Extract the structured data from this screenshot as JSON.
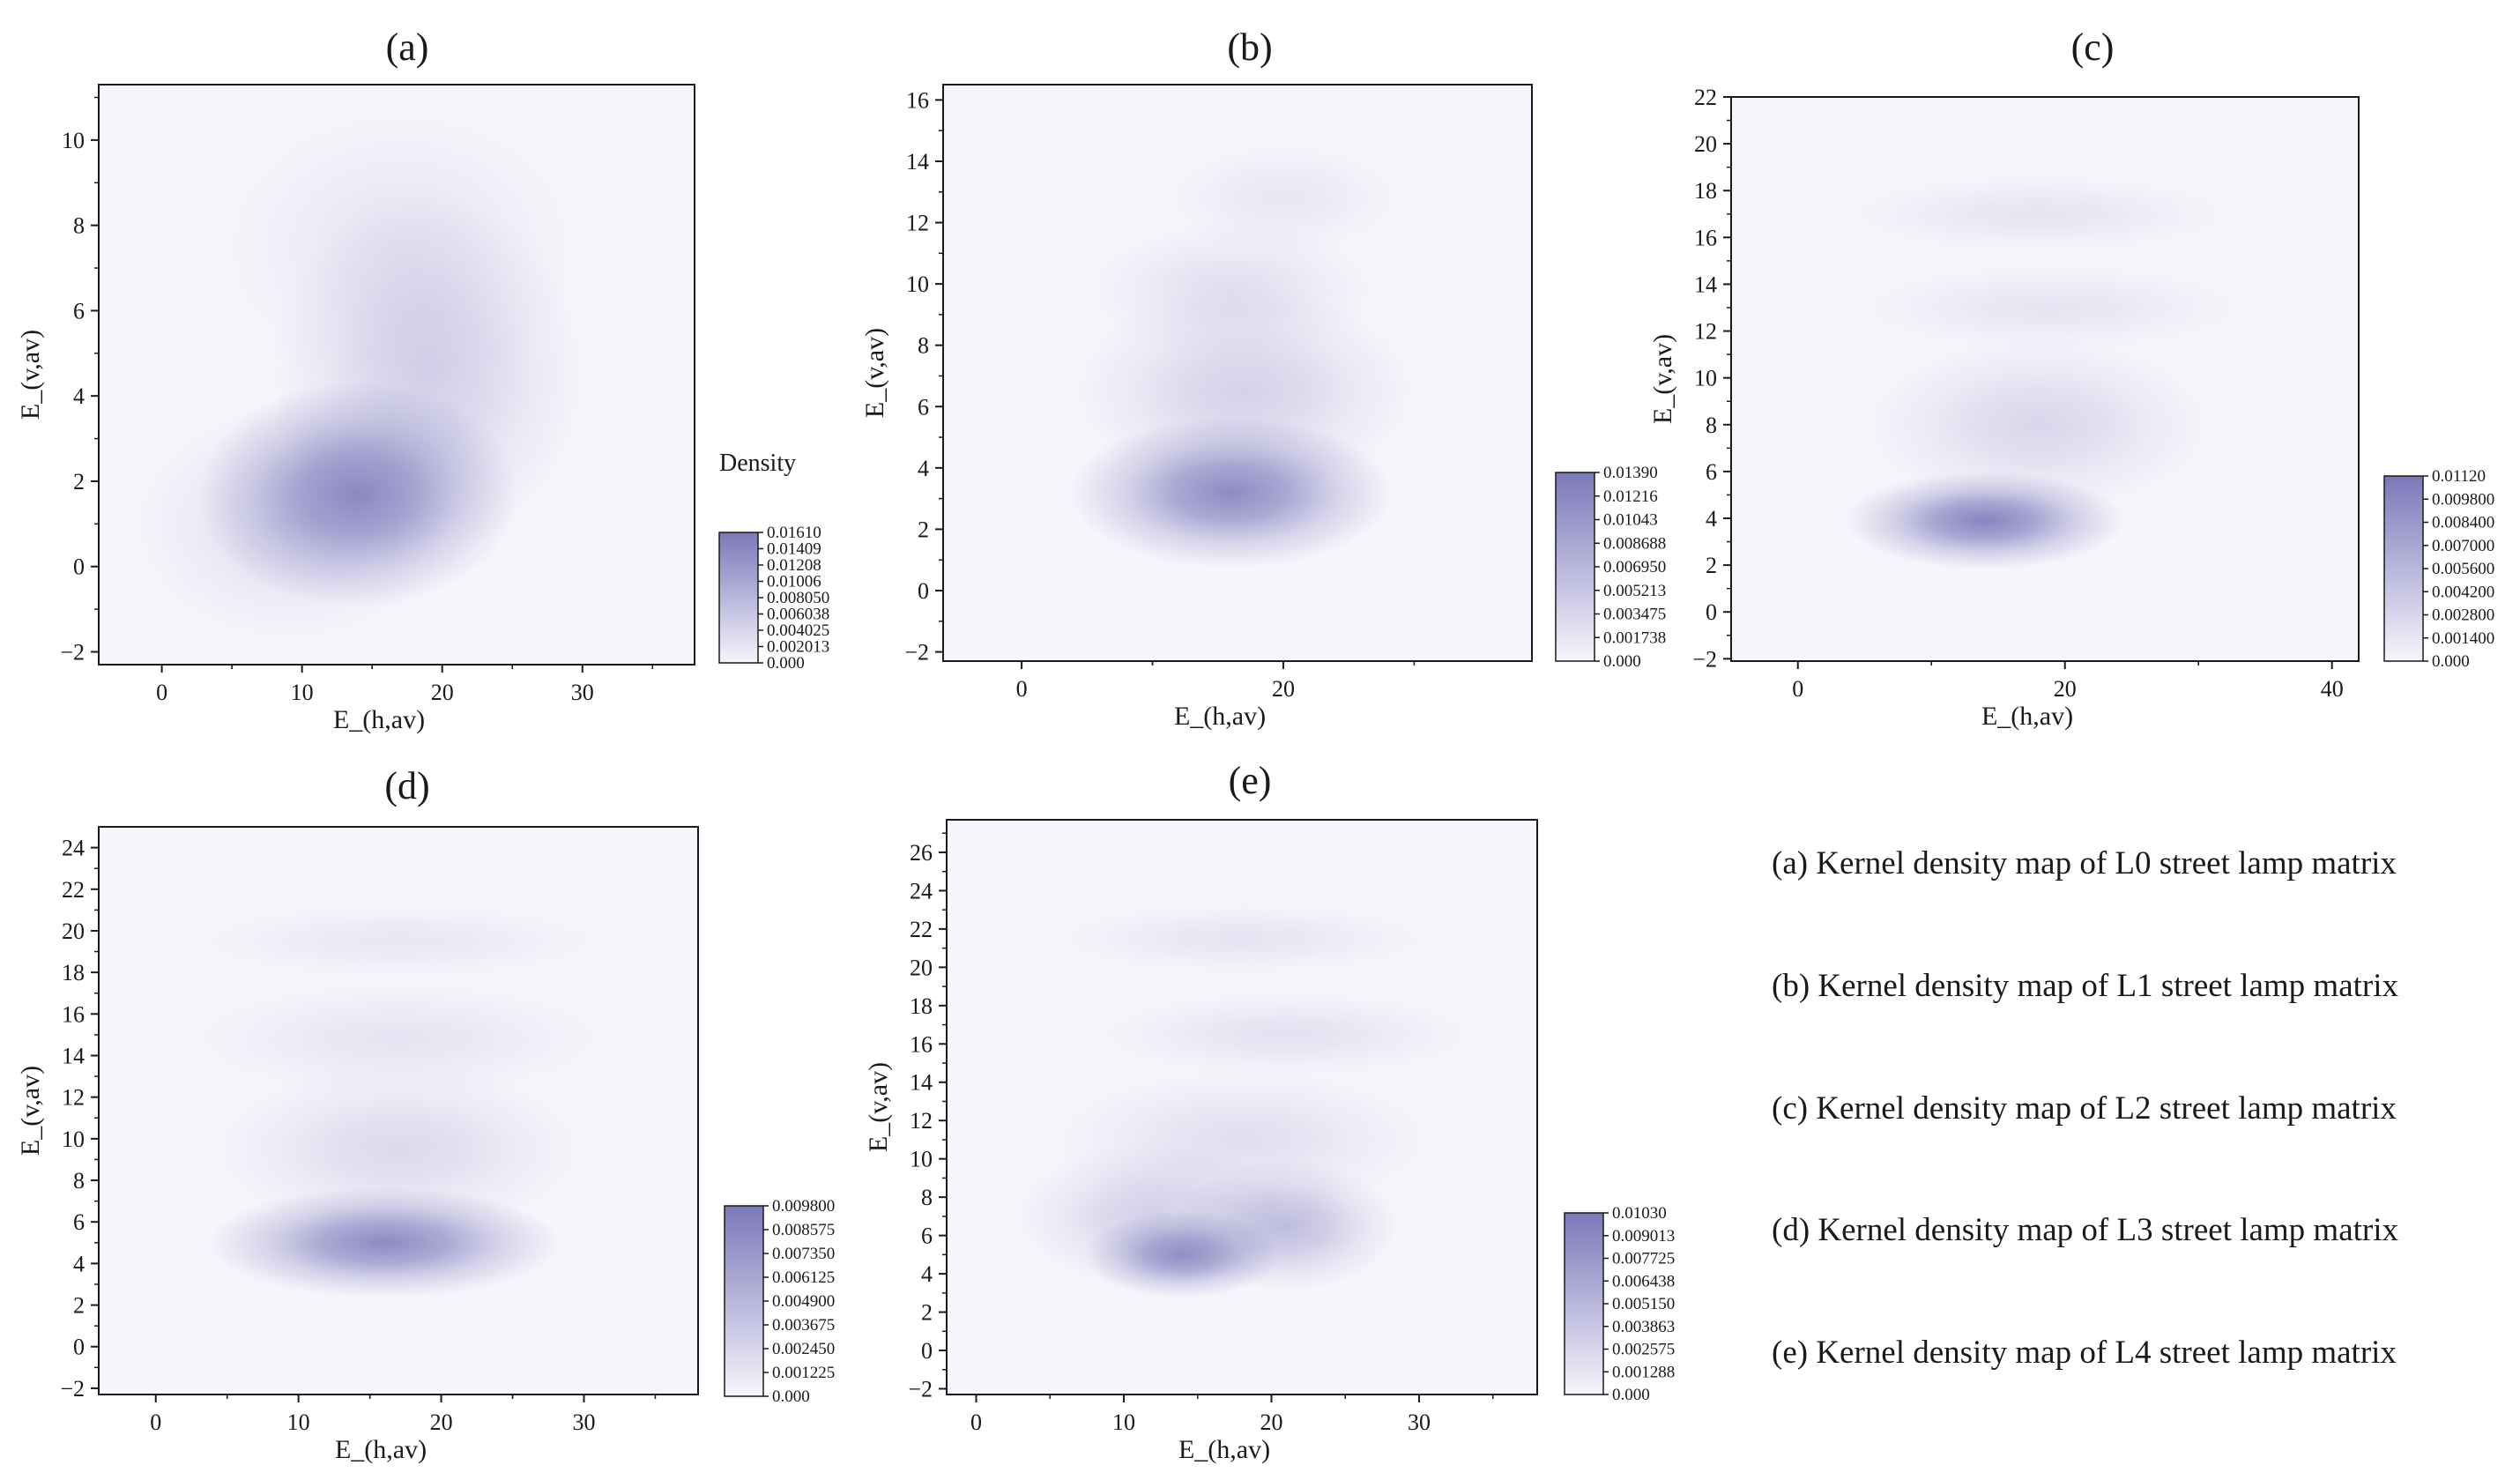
{
  "colors": {
    "low": "#f6f5fb",
    "high": "#7b78ba",
    "axis": "#1a1a1a"
  },
  "chart_data": [
    {
      "type": "heatmap",
      "title": "(a)",
      "xlabel": "E_(h,av)",
      "ylabel": "E_(v,av)",
      "xlim": [
        -4.5,
        38
      ],
      "ylim": [
        -2.3,
        11.3
      ],
      "xticks": [
        "0",
        "10",
        "20",
        "30"
      ],
      "xtick_values": [
        0,
        10,
        20,
        30
      ],
      "yticks": [
        "−2",
        "0",
        "2",
        "4",
        "6",
        "8",
        "10"
      ],
      "ytick_values": [
        -2,
        0,
        2,
        4,
        6,
        8,
        10
      ],
      "colorbar": {
        "title": "Density",
        "labels": [
          "0.000",
          "0.002013",
          "0.004025",
          "0.006038",
          "0.008050",
          "0.01006",
          "0.01208",
          "0.01409",
          "0.01610"
        ]
      },
      "blobs": [
        {
          "cx": 14,
          "cy": 1.7,
          "sx": 6,
          "sy": 1.4,
          "a": 0.85
        },
        {
          "cx": 19,
          "cy": 4.5,
          "sx": 6,
          "sy": 2.2,
          "a": 0.3
        },
        {
          "cx": 17,
          "cy": 7.5,
          "sx": 7,
          "sy": 1.8,
          "a": 0.14
        },
        {
          "cx": 9,
          "cy": 1.0,
          "sx": 6,
          "sy": 1.5,
          "a": 0.2
        }
      ]
    },
    {
      "type": "heatmap",
      "title": "(b)",
      "xlabel": "E_(h,av)",
      "ylabel": "E_(v,av)",
      "xlim": [
        -6,
        39
      ],
      "ylim": [
        -2.3,
        16.5
      ],
      "xticks": [
        "0",
        "20"
      ],
      "xtick_values": [
        0,
        20
      ],
      "yticks": [
        "−2",
        "0",
        "2",
        "4",
        "6",
        "8",
        "10",
        "12",
        "14",
        "16"
      ],
      "ytick_values": [
        -2,
        0,
        2,
        4,
        6,
        8,
        10,
        12,
        14,
        16
      ],
      "colorbar": {
        "title": "",
        "labels": [
          "0.000",
          "0.001738",
          "0.003475",
          "0.005213",
          "0.006950",
          "0.008688",
          "0.01043",
          "0.01216",
          "0.01390"
        ]
      },
      "blobs": [
        {
          "cx": 16,
          "cy": 3.2,
          "sx": 6.5,
          "sy": 1.3,
          "a": 0.85
        },
        {
          "cx": 17,
          "cy": 6.5,
          "sx": 7,
          "sy": 1.8,
          "a": 0.28
        },
        {
          "cx": 16,
          "cy": 9.8,
          "sx": 6,
          "sy": 1.2,
          "a": 0.18
        },
        {
          "cx": 20,
          "cy": 12.8,
          "sx": 5,
          "sy": 1.0,
          "a": 0.12
        }
      ]
    },
    {
      "type": "heatmap",
      "title": "(c)",
      "xlabel": "E_(h,av)",
      "ylabel": "E_(v,av)",
      "xlim": [
        -5,
        42
      ],
      "ylim": [
        -2.1,
        22
      ],
      "xticks": [
        "0",
        "20",
        "40"
      ],
      "xtick_values": [
        0,
        20,
        40
      ],
      "yticks": [
        "−2",
        "0",
        "2",
        "4",
        "6",
        "8",
        "10",
        "12",
        "14",
        "16",
        "18",
        "20",
        "22"
      ],
      "ytick_values": [
        -2,
        0,
        2,
        4,
        6,
        8,
        10,
        12,
        14,
        16,
        18,
        20,
        22
      ],
      "colorbar": {
        "title": "",
        "labels": [
          "0.000",
          "0.001400",
          "0.002800",
          "0.004200",
          "0.005600",
          "0.007000",
          "0.008400",
          "0.009800",
          "0.01120"
        ]
      },
      "blobs": [
        {
          "cx": 14,
          "cy": 3.9,
          "sx": 5.5,
          "sy": 1.1,
          "a": 0.9
        },
        {
          "cx": 18,
          "cy": 8.0,
          "sx": 7,
          "sy": 2.0,
          "a": 0.24
        },
        {
          "cx": 19,
          "cy": 13.0,
          "sx": 8,
          "sy": 1.0,
          "a": 0.14
        },
        {
          "cx": 18,
          "cy": 17.0,
          "sx": 8,
          "sy": 0.9,
          "a": 0.14
        }
      ]
    },
    {
      "type": "heatmap",
      "title": "(d)",
      "xlabel": "E_(h,av)",
      "ylabel": "E_(v,av)",
      "xlim": [
        -4,
        38
      ],
      "ylim": [
        -2.3,
        25
      ],
      "xticks": [
        "0",
        "10",
        "20",
        "30"
      ],
      "xtick_values": [
        0,
        10,
        20,
        30
      ],
      "yticks": [
        "−2",
        "0",
        "2",
        "4",
        "6",
        "8",
        "10",
        "12",
        "14",
        "16",
        "18",
        "20",
        "22",
        "24"
      ],
      "ytick_values": [
        -2,
        0,
        2,
        4,
        6,
        8,
        10,
        12,
        14,
        16,
        18,
        20,
        22,
        24
      ],
      "colorbar": {
        "title": "",
        "labels": [
          "0.000",
          "0.001225",
          "0.002450",
          "0.003675",
          "0.004900",
          "0.006125",
          "0.007350",
          "0.008575",
          "0.009800"
        ]
      },
      "blobs": [
        {
          "cx": 16,
          "cy": 5.0,
          "sx": 6.5,
          "sy": 1.4,
          "a": 0.85
        },
        {
          "cx": 17,
          "cy": 9.5,
          "sx": 7,
          "sy": 2.2,
          "a": 0.22
        },
        {
          "cx": 17,
          "cy": 14.8,
          "sx": 8,
          "sy": 1.5,
          "a": 0.14
        },
        {
          "cx": 17,
          "cy": 19.5,
          "sx": 8,
          "sy": 1.0,
          "a": 0.12
        }
      ]
    },
    {
      "type": "heatmap",
      "title": "(e)",
      "xlabel": "E_(h,av)",
      "ylabel": "E_(v,av)",
      "xlim": [
        -2,
        38
      ],
      "ylim": [
        -2.3,
        27.7
      ],
      "xticks": [
        "0",
        "10",
        "20",
        "30"
      ],
      "xtick_values": [
        0,
        10,
        20,
        30
      ],
      "yticks": [
        "−2",
        "0",
        "2",
        "4",
        "6",
        "8",
        "10",
        "12",
        "14",
        "16",
        "18",
        "20",
        "22",
        "24",
        "26"
      ],
      "ytick_values": [
        -2,
        0,
        2,
        4,
        6,
        8,
        10,
        12,
        14,
        16,
        18,
        20,
        22,
        24,
        26
      ],
      "colorbar": {
        "title": "",
        "labels": [
          "0.000",
          "0.001288",
          "0.002575",
          "0.003863",
          "0.005150",
          "0.006438",
          "0.007725",
          "0.009013",
          "0.01030"
        ]
      },
      "blobs": [
        {
          "cx": 14,
          "cy": 5.0,
          "sx": 3.5,
          "sy": 1.2,
          "a": 0.8
        },
        {
          "cx": 21,
          "cy": 6.5,
          "sx": 4,
          "sy": 1.8,
          "a": 0.45
        },
        {
          "cx": 12,
          "cy": 7.0,
          "sx": 5,
          "sy": 2.0,
          "a": 0.3
        },
        {
          "cx": 18,
          "cy": 11.0,
          "sx": 7,
          "sy": 2.0,
          "a": 0.18
        },
        {
          "cx": 21,
          "cy": 16.5,
          "sx": 7,
          "sy": 1.2,
          "a": 0.16
        },
        {
          "cx": 18,
          "cy": 21.5,
          "sx": 7,
          "sy": 1.0,
          "a": 0.14
        }
      ]
    }
  ],
  "captions": [
    "(a) Kernel density map of L0 street lamp matrix",
    "(b) Kernel density map of L1 street lamp matrix",
    "(c) Kernel density map of L2 street lamp matrix",
    "(d) Kernel density map of L3 street lamp matrix",
    "(e) Kernel density map of L4 street lamp matrix"
  ]
}
